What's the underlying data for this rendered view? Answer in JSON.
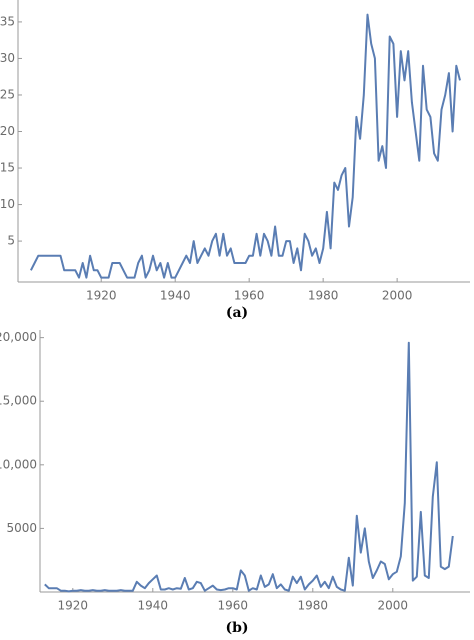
{
  "chart_data": [
    {
      "type": "line",
      "caption": "(a)",
      "x": [
        1901,
        1902,
        1903,
        1904,
        1905,
        1906,
        1907,
        1908,
        1909,
        1910,
        1911,
        1912,
        1913,
        1914,
        1915,
        1916,
        1917,
        1918,
        1919,
        1920,
        1921,
        1922,
        1923,
        1924,
        1925,
        1926,
        1927,
        1928,
        1929,
        1930,
        1931,
        1932,
        1933,
        1934,
        1935,
        1936,
        1937,
        1938,
        1939,
        1940,
        1941,
        1942,
        1943,
        1944,
        1945,
        1946,
        1947,
        1948,
        1949,
        1950,
        1951,
        1952,
        1953,
        1954,
        1955,
        1956,
        1957,
        1958,
        1959,
        1960,
        1961,
        1962,
        1963,
        1964,
        1965,
        1966,
        1967,
        1968,
        1969,
        1970,
        1971,
        1972,
        1973,
        1974,
        1975,
        1976,
        1977,
        1978,
        1979,
        1980,
        1981,
        1982,
        1983,
        1984,
        1985,
        1986,
        1987,
        1988,
        1989,
        1990,
        1991,
        1992,
        1993,
        1994,
        1995,
        1996,
        1997,
        1998,
        1999,
        2000,
        2001,
        2002,
        2003,
        2004,
        2005,
        2006,
        2007,
        2008,
        2009,
        2010,
        2011,
        2012,
        2013,
        2014,
        2015,
        2016,
        2017
      ],
      "series": [
        {
          "color": "#5a7db3",
          "values": [
            1,
            2,
            3,
            3,
            3,
            3,
            3,
            3,
            3,
            1,
            1,
            1,
            1,
            0,
            2,
            0,
            3,
            1,
            1,
            0,
            0,
            0,
            2,
            2,
            2,
            1,
            0,
            0,
            0,
            2,
            3,
            0,
            1,
            3,
            1,
            2,
            0,
            2,
            0,
            0,
            1,
            2,
            3,
            2,
            5,
            2,
            3,
            4,
            3,
            5,
            6,
            3,
            6,
            3,
            4,
            2,
            2,
            2,
            2,
            3,
            3,
            6,
            3,
            6,
            5,
            3,
            7,
            3,
            3,
            5,
            5,
            2,
            4,
            1,
            6,
            5,
            3,
            4,
            2,
            4,
            9,
            4,
            13,
            12,
            14,
            15,
            7,
            11,
            22,
            19,
            25,
            36,
            32,
            30,
            16,
            18,
            15,
            33,
            32,
            22,
            31,
            27,
            31,
            24,
            20,
            16,
            29,
            23,
            22,
            17,
            16,
            23,
            25,
            28,
            20,
            29,
            27
          ]
        }
      ],
      "xlim": [
        1897.5,
        2019.7
      ],
      "xticks": [
        1920,
        1940,
        1960,
        1980,
        2000
      ],
      "ylim": [
        -0.6,
        38
      ],
      "yticks": [
        5,
        10,
        15,
        20,
        25,
        30,
        35
      ]
    },
    {
      "type": "line",
      "caption": "(b)",
      "x": [
        1913,
        1914,
        1915,
        1916,
        1917,
        1918,
        1919,
        1920,
        1921,
        1922,
        1923,
        1924,
        1925,
        1926,
        1927,
        1928,
        1929,
        1930,
        1931,
        1932,
        1933,
        1934,
        1935,
        1936,
        1937,
        1938,
        1939,
        1940,
        1941,
        1942,
        1943,
        1944,
        1945,
        1946,
        1947,
        1948,
        1949,
        1950,
        1951,
        1952,
        1953,
        1954,
        1955,
        1956,
        1957,
        1958,
        1959,
        1960,
        1961,
        1962,
        1963,
        1964,
        1965,
        1966,
        1967,
        1968,
        1969,
        1970,
        1971,
        1972,
        1973,
        1974,
        1975,
        1976,
        1977,
        1978,
        1979,
        1980,
        1981,
        1982,
        1983,
        1984,
        1985,
        1986,
        1987,
        1988,
        1989,
        1990,
        1991,
        1992,
        1993,
        1994,
        1995,
        1996,
        1997,
        1998,
        1999,
        2000,
        2001,
        2002,
        2003,
        2004,
        2005,
        2006,
        2007,
        2008,
        2009,
        2010,
        2011,
        2012,
        2013,
        2014,
        2015
      ],
      "series": [
        {
          "color": "#5a7db3",
          "values": [
            600,
            300,
            300,
            300,
            100,
            100,
            50,
            100,
            100,
            150,
            100,
            100,
            150,
            100,
            100,
            150,
            100,
            100,
            100,
            150,
            100,
            100,
            100,
            800,
            500,
            300,
            700,
            1000,
            1300,
            200,
            200,
            300,
            200,
            300,
            250,
            1100,
            200,
            300,
            800,
            700,
            100,
            300,
            500,
            200,
            150,
            200,
            300,
            300,
            200,
            1700,
            1300,
            100,
            300,
            200,
            1300,
            400,
            600,
            1400,
            300,
            600,
            200,
            100,
            1200,
            700,
            1200,
            200,
            600,
            900,
            1300,
            400,
            800,
            300,
            1200,
            400,
            200,
            100,
            2700,
            500,
            6000,
            3100,
            5000,
            2400,
            1100,
            1700,
            2400,
            2200,
            1000,
            1400,
            1600,
            2800,
            7000,
            19600,
            900,
            1200,
            6300,
            1300,
            1100,
            7500,
            10200,
            2000,
            1800,
            2000,
            4400
          ]
        }
      ],
      "xlim": [
        1911.8,
        2019.3
      ],
      "xticks": [
        1920,
        1940,
        1960,
        1980,
        2000
      ],
      "ylim": [
        0,
        20600
      ],
      "yticks": [
        5000,
        {
          "value": 10000,
          "label": "10,000"
        },
        {
          "value": 15000,
          "label": "15,000"
        },
        {
          "value": 20000,
          "label": "20,000"
        }
      ]
    }
  ]
}
